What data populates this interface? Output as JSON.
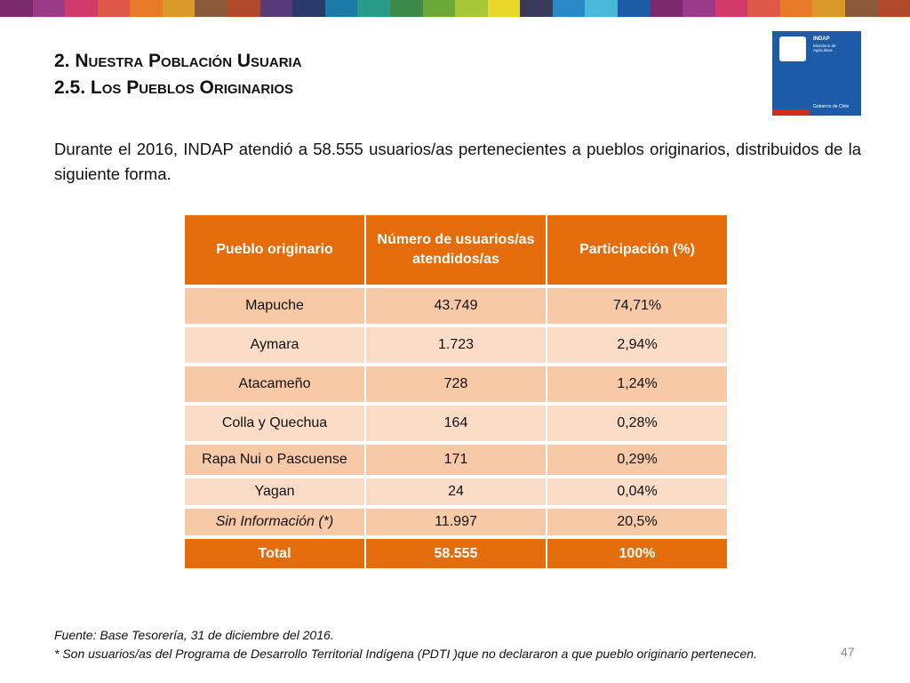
{
  "header": {
    "title": "2. Nuestra Población Usuaria",
    "subtitle": "2.5. Los Pueblos Originarios"
  },
  "logo": {
    "name": "INDAP",
    "ministry": "Ministerio de Agricultura",
    "government": "Gobierno de Chile"
  },
  "intro": "Durante el 2016, INDAP atendió a 58.555 usuarios/as pertenecientes a pueblos originarios, distribuidos de la siguiente forma.",
  "table": {
    "headers": [
      "Pueblo originario",
      "Número de usuarios/as atendidos/as",
      "Participación (%)"
    ],
    "rows": [
      [
        "Mapuche",
        "43.749",
        "74,71%"
      ],
      [
        "Aymara",
        "1.723",
        "2,94%"
      ],
      [
        "Atacameño",
        "728",
        "1,24%"
      ],
      [
        "Colla y Quechua",
        "164",
        "0,28%"
      ],
      [
        "Rapa Nui o Pascuense",
        "171",
        "0,29%"
      ],
      [
        "Yagan",
        "24",
        "0,04%"
      ],
      [
        "Sin Información (*)",
        "11.997",
        "20,5%"
      ]
    ],
    "total": [
      "Total",
      "58.555",
      "100%"
    ]
  },
  "footnotes": [
    "Fuente: Base Tesorería, 31 de diciembre del 2016.",
    "* Son usuarios/as del Programa de Desarrollo Territorial Indígena (PDTI )que no declararon a que pueblo originario pertenecen."
  ],
  "page_number": "47"
}
